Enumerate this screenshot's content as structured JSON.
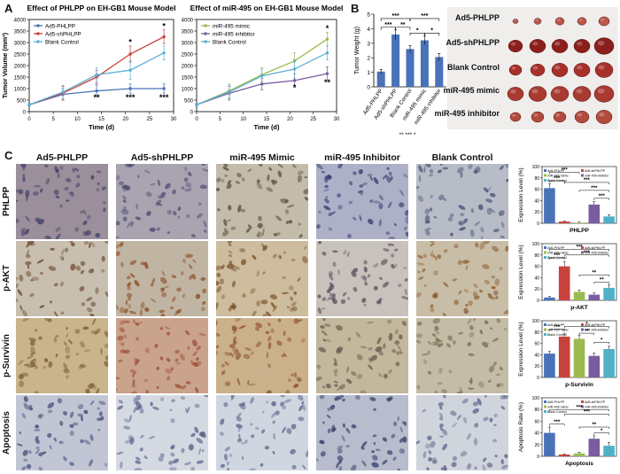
{
  "panels": {
    "a": "A",
    "b": "B",
    "c": "C"
  },
  "colors": {
    "phlpp": "#4a72b8",
    "shphlpp": "#c8423c",
    "blank": "#5bb0d6",
    "mimic": "#9bbb4f",
    "inhibitor": "#7a5ca0",
    "bar_blue": "#4a72b8",
    "bar_red": "#c8423c",
    "bar_green": "#9bbb4f",
    "bar_purple": "#7a5ca0",
    "bar_cyan": "#4fb0c6"
  },
  "chart_data": [
    {
      "id": "line1",
      "type": "line",
      "title": "Effect of PHLPP on EH-GB1 Mouse Model",
      "xlabel": "Time (d)",
      "ylabel": "Tumor Volume (mm³)",
      "xlim": [
        0,
        30
      ],
      "ylim": [
        0,
        4000
      ],
      "xticks": [
        0,
        5,
        10,
        15,
        20,
        25,
        30
      ],
      "yticks": [
        0,
        500,
        1000,
        1500,
        2000,
        2500,
        3000,
        3500,
        4000
      ],
      "x": [
        0,
        7,
        14,
        21,
        28
      ],
      "legend": "top-left",
      "series": [
        {
          "name": "Ad5-PHLPP",
          "color": "#4a72b8",
          "values": [
            300,
            750,
            900,
            1000,
            1000
          ],
          "err": [
            60,
            250,
            250,
            200,
            200
          ]
        },
        {
          "name": "Ad5-shPHLPP",
          "color": "#c8423c",
          "values": [
            300,
            800,
            1500,
            2500,
            3250
          ],
          "err": [
            60,
            300,
            300,
            350,
            300
          ]
        },
        {
          "name": "Blank Control",
          "color": "#5bb0d6",
          "values": [
            300,
            850,
            1600,
            1800,
            2550
          ],
          "err": [
            60,
            300,
            300,
            400,
            300
          ]
        }
      ],
      "annotations": [
        {
          "x": 21,
          "y": 2900,
          "text": "*"
        },
        {
          "x": 28,
          "y": 3600,
          "text": "*"
        },
        {
          "x": 14,
          "y": 500,
          "text": "**"
        },
        {
          "x": 21,
          "y": 500,
          "text": "***"
        },
        {
          "x": 28,
          "y": 500,
          "text": "***"
        }
      ]
    },
    {
      "id": "line2",
      "type": "line",
      "title": "Effect of miR-495 on EH-GB1 Mouse Model",
      "xlabel": "Time (d)",
      "ylabel": "",
      "xlim": [
        0,
        30
      ],
      "ylim": [
        0,
        4000
      ],
      "xticks": [
        0,
        5,
        10,
        15,
        20,
        25,
        30
      ],
      "yticks": [
        0,
        500,
        1000,
        1500,
        2000,
        2500,
        3000,
        3500,
        4000
      ],
      "x": [
        0,
        7,
        14,
        21,
        28
      ],
      "legend": "top-left",
      "series": [
        {
          "name": "miR-495 mimic",
          "color": "#9bbb4f",
          "values": [
            300,
            900,
            1600,
            2200,
            3150
          ],
          "err": [
            60,
            300,
            300,
            350,
            300
          ]
        },
        {
          "name": "miR-495 inhibitor",
          "color": "#7a5ca0",
          "values": [
            300,
            800,
            1200,
            1350,
            1650
          ],
          "err": [
            60,
            300,
            250,
            300,
            300
          ]
        },
        {
          "name": "Blank Control",
          "color": "#5bb0d6",
          "values": [
            300,
            850,
            1550,
            1850,
            2550
          ],
          "err": [
            60,
            300,
            300,
            400,
            300
          ]
        }
      ],
      "annotations": [
        {
          "x": 28,
          "y": 3500,
          "text": "*"
        },
        {
          "x": 21,
          "y": 950,
          "text": "*"
        },
        {
          "x": 28,
          "y": 1150,
          "text": "**"
        }
      ]
    },
    {
      "id": "weight",
      "type": "bar",
      "ylabel": "Tumor Weight (g)",
      "ylim": [
        0,
        5
      ],
      "yticks": [
        0,
        1,
        2,
        3,
        4,
        5
      ],
      "categories": [
        "Ad5-PHLPP",
        "Ad5-shPHLPP",
        "Blank Control",
        "miR-495 mimic",
        "miR-495 inhibitor"
      ],
      "values": [
        1.05,
        3.6,
        2.6,
        3.2,
        2.05
      ],
      "err": [
        0.15,
        0.35,
        0.25,
        0.3,
        0.25
      ],
      "color": "#4a72b8",
      "brackets": [
        {
          "from": 0,
          "to": 1,
          "level": 4.1,
          "text": "***"
        },
        {
          "from": 0,
          "to": 2,
          "level": 4.7,
          "text": "***"
        },
        {
          "from": 1,
          "to": 2,
          "level": 4.1,
          "text": "**"
        },
        {
          "from": 2,
          "to": 3,
          "level": 3.7,
          "text": "*"
        },
        {
          "from": 2,
          "to": 4,
          "level": 4.7,
          "text": "***"
        },
        {
          "from": 3,
          "to": 4,
          "level": 3.7,
          "text": "*"
        }
      ],
      "footer": "** *** *"
    },
    {
      "id": "phlpp",
      "type": "bar",
      "xlabel": "PHLPP",
      "ylabel": "Expression Level (%)",
      "ylim": [
        0,
        100
      ],
      "yticks": [
        0,
        20,
        40,
        60,
        80,
        100
      ],
      "categories": [
        "Ad5-PHLPP",
        "Ad5-shPHLPP",
        "miR-495 mimic",
        "miR-495 inhibitor",
        "Blank Control"
      ],
      "values": [
        62,
        3,
        1,
        33,
        12
      ],
      "err": [
        8,
        1,
        1,
        5,
        3
      ],
      "brackets": [
        {
          "from": 0,
          "to": 1,
          "level": 75,
          "text": "***"
        },
        {
          "from": 0,
          "to": 2,
          "level": 90,
          "text": "***"
        },
        {
          "from": 1,
          "to": 4,
          "level": 72,
          "text": "***"
        },
        {
          "from": 2,
          "to": 4,
          "level": 58,
          "text": "***"
        },
        {
          "from": 3,
          "to": 4,
          "level": 44,
          "text": "***"
        }
      ]
    },
    {
      "id": "pakt",
      "type": "bar",
      "xlabel": "p-AKT",
      "ylabel": "Expression Level (%)",
      "ylim": [
        0,
        100
      ],
      "yticks": [
        0,
        20,
        40,
        60,
        80,
        100
      ],
      "categories": [
        "Ad5-PHLPP",
        "Ad5-shPHLPP",
        "miR-495 mimic",
        "miR-495 inhibitor",
        "Blank Control"
      ],
      "values": [
        5,
        60,
        15,
        10,
        22
      ],
      "err": [
        2,
        8,
        3,
        3,
        5
      ],
      "brackets": [
        {
          "from": 0,
          "to": 1,
          "level": 75,
          "text": "***"
        },
        {
          "from": 0,
          "to": 4,
          "level": 90,
          "text": "***"
        },
        {
          "from": 1,
          "to": 4,
          "level": 80,
          "text": "***"
        },
        {
          "from": 2,
          "to": 4,
          "level": 45,
          "text": "**"
        },
        {
          "from": 3,
          "to": 4,
          "level": 32,
          "text": "**"
        }
      ]
    },
    {
      "id": "psurvivin",
      "type": "bar",
      "xlabel": "p-Survivin",
      "ylabel": "Expression Level (%)",
      "ylim": [
        0,
        100
      ],
      "yticks": [
        0,
        20,
        40,
        60,
        80,
        100
      ],
      "categories": [
        "Ad5-PHLPP",
        "Ad5-shPHLPP",
        "miR-495 mimic",
        "miR-495 inhibitor",
        "Blank Control"
      ],
      "values": [
        42,
        72,
        68,
        38,
        50
      ],
      "err": [
        4,
        6,
        6,
        5,
        5
      ],
      "brackets": [
        {
          "from": 0,
          "to": 1,
          "level": 85,
          "text": "***"
        },
        {
          "from": 1,
          "to": 4,
          "level": 90,
          "text": "*"
        },
        {
          "from": 2,
          "to": 3,
          "level": 78,
          "text": "**"
        },
        {
          "from": 3,
          "to": 4,
          "level": 62,
          "text": "*"
        }
      ]
    },
    {
      "id": "apoptosis",
      "type": "bar",
      "xlabel": "Apoptosis",
      "ylabel": "Apoptosis Rate (%)",
      "ylim": [
        0,
        100
      ],
      "yticks": [
        0,
        20,
        40,
        60,
        80,
        100
      ],
      "categories": [
        "Ad5-PHLPP",
        "Ad5-shPHLPP",
        "miR-495 mimic",
        "miR-495 inhibitor",
        "Blank Control"
      ],
      "values": [
        40,
        3,
        5,
        30,
        18
      ],
      "err": [
        10,
        1,
        2,
        5,
        6
      ],
      "brackets": [
        {
          "from": 0,
          "to": 1,
          "level": 55,
          "text": "***"
        },
        {
          "from": 0,
          "to": 4,
          "level": 80,
          "text": "***"
        },
        {
          "from": 1,
          "to": 4,
          "level": 72,
          "text": "***"
        },
        {
          "from": 2,
          "to": 4,
          "level": 50,
          "text": "**"
        },
        {
          "from": 3,
          "to": 4,
          "level": 40,
          "text": "*"
        }
      ]
    }
  ],
  "photo_labels": [
    "Ad5-PHLPP",
    "Ad5-shPHLPP",
    "Blank Control",
    "miR-495 mimic",
    "miR-495 inhibitor"
  ],
  "column_titles": [
    "Ad5-PHLPP",
    "Ad5-shPHLPP",
    "miR-495 Mimic",
    "miR-495 Inhibitor",
    "Blank Control"
  ],
  "row_titles": [
    "PHLPP",
    "p-AKT",
    "p-Survivin",
    "Apoptosis"
  ]
}
